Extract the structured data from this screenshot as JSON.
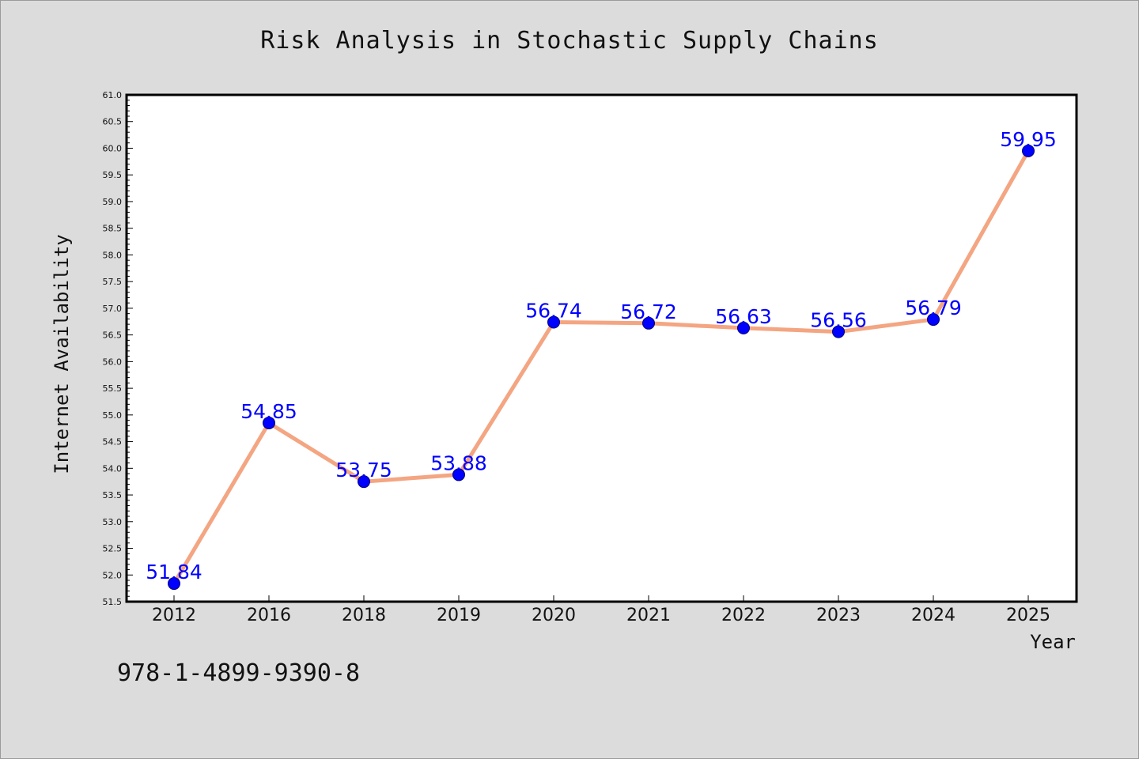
{
  "chart_data": {
    "type": "line",
    "title": "Risk Analysis in Stochastic Supply Chains",
    "xlabel": "Year",
    "ylabel": "Internet Availability",
    "categories": [
      "2012",
      "2016",
      "2018",
      "2019",
      "2020",
      "2021",
      "2022",
      "2023",
      "2024",
      "2025"
    ],
    "series": [
      {
        "values": [
          51.84,
          54.85,
          53.75,
          53.88,
          56.74,
          56.72,
          56.63,
          56.56,
          56.79,
          59.95
        ],
        "labels": [
          "51.84",
          "54.85",
          "53.75",
          "53.88",
          "56.74",
          "56.72",
          "56.63",
          "56.56",
          "56.79",
          "59.95"
        ],
        "line_color": "#f4a582",
        "marker_color": "#0000ff",
        "label_color": "#0000ff"
      }
    ],
    "ylim": [
      51.5,
      61.0
    ],
    "yticks": [
      "51.5",
      "52.0",
      "52.5",
      "53.0",
      "53.5",
      "54.0",
      "54.5",
      "55.0",
      "55.5",
      "56.0",
      "56.5",
      "57.0",
      "57.5",
      "58.0",
      "58.5",
      "59.0",
      "59.5",
      "60.0",
      "60.5",
      "61.0"
    ],
    "grid": false,
    "legend": "none"
  },
  "footer": {
    "code": "978-1-4899-9390-8"
  }
}
